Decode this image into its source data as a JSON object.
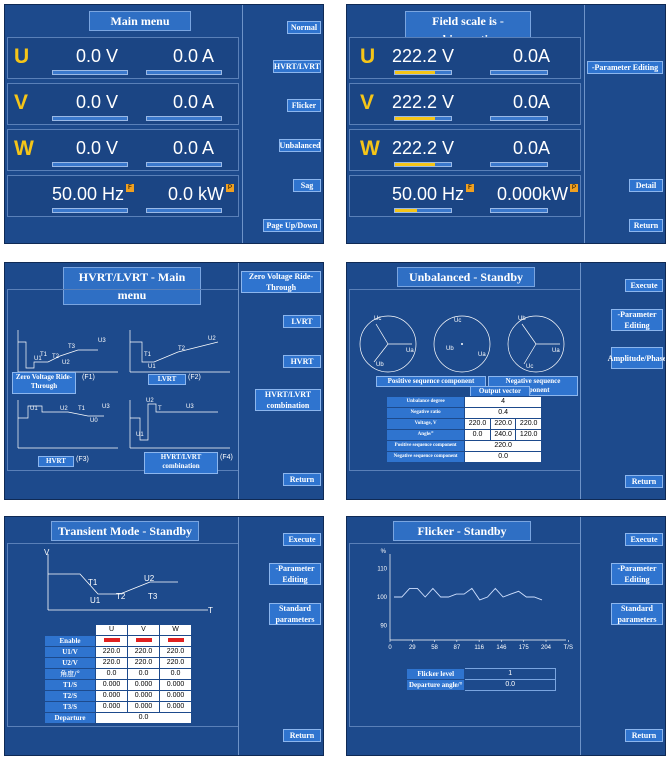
{
  "panel1": {
    "title": "Main menu",
    "rows": [
      {
        "phase": "U",
        "voltage": "0.0 V",
        "current": "0.0 A"
      },
      {
        "phase": "V",
        "voltage": "0.0 V",
        "current": "0.0 A"
      },
      {
        "phase": "W",
        "voltage": "0.0 V",
        "current": "0.0 A"
      }
    ],
    "frequency": "50.00 Hz",
    "power": "0.0 kW",
    "freq_tag": "F",
    "power_tag": "P",
    "buttons": [
      "Normal",
      "HVRT/LVRT",
      "Flicker",
      "Unbalanced",
      "Sag",
      "Page Up/Down"
    ]
  },
  "panel2": {
    "title": "Field scale is - kinematic",
    "rows": [
      {
        "phase": "U",
        "voltage": "222.2 V",
        "current": "0.0A",
        "level": 0.72
      },
      {
        "phase": "V",
        "voltage": "222.2 V",
        "current": "0.0A",
        "level": 0.72
      },
      {
        "phase": "W",
        "voltage": "222.2 V",
        "current": "0.0A",
        "level": 0.72
      }
    ],
    "frequency": "50.00 Hz",
    "power": "0.000kW",
    "freq_tag": "F",
    "power_tag": "P",
    "freq_level": 0.4,
    "buttons": [
      "-Parameter Editing",
      "Detail",
      "Return"
    ]
  },
  "panel3": {
    "title": "HVRT/LVRT - Main menu",
    "buttons": [
      "Zero Voltage Ride-Through",
      "LVRT",
      "HVRT",
      "HVRT/LVRT combination",
      "Return"
    ],
    "graph_labels": {
      "f1_u1": "U1",
      "f1_u2": "U2",
      "f1_t3": "T3",
      "f1_u3": "U3",
      "f1_t1": "T1",
      "f1_t2": "T2",
      "f2_t1": "T1",
      "f2_t2": "T2",
      "f2_u2": "U2",
      "f2_u1": "U1",
      "f3_u1": "U1",
      "f3_u2": "U2",
      "f3_u3": "U3",
      "f3_t1": "T1",
      "f3_u0": "U0",
      "f4_u2": "U2",
      "f4_u1": "U1",
      "f4_u3": "U3",
      "f4_t": "T"
    },
    "f1_caption": "(F1)",
    "f2_caption": "(F2)",
    "f3_caption": "(F3)",
    "f4_caption": "(F4)",
    "label_zvrt": "Zero Voltage Ride-Through",
    "label_lvrt": "LVRT",
    "label_hvrt": "HVRT",
    "label_combo": "HVRT/LVRT combination"
  },
  "panel4": {
    "title": "Unbalanced - Standby",
    "buttons": [
      "Execute",
      "-Parameter Editing",
      "Amplitude/Phase",
      "Return"
    ],
    "phasor_labels": [
      "Uc",
      "Ub",
      "Ua",
      "Uc",
      "Ub",
      "Ua",
      "Ub",
      "Uc",
      "Ua"
    ],
    "label_pos": "Positive sequence component",
    "label_neg": "Negative sequence component",
    "label_out": "Output vector",
    "table": [
      {
        "label": "Unbalance degree",
        "cells": [
          "4"
        ]
      },
      {
        "label": "Negative ratio",
        "cells": [
          "0.4"
        ]
      },
      {
        "label": "Voltage, V",
        "cells": [
          "220.0",
          "220.0",
          "220.0"
        ]
      },
      {
        "label": "Angle/°",
        "cells": [
          "0.0",
          "240.0",
          "120.0"
        ]
      },
      {
        "label": "Positive sequence component",
        "cells": [
          "220.0"
        ]
      },
      {
        "label": "Negative sequence component",
        "cells": [
          "0.0"
        ]
      }
    ]
  },
  "panel5": {
    "title": "Transient Mode - Standby",
    "buttons": [
      "Execute",
      "-Parameter Editing",
      "Standard parameters",
      "Return"
    ],
    "graph_labels": {
      "v": "V",
      "t": "T",
      "t1": "T1",
      "u1": "U1",
      "t2": "T2",
      "u2": "U2",
      "t3": "T3"
    },
    "columns": [
      "",
      "U",
      "V",
      "W"
    ],
    "rows": [
      {
        "label": "Enable",
        "cells": [
          "",
          "",
          ""
        ]
      },
      {
        "label": "U1/V",
        "cells": [
          "220.0",
          "220.0",
          "220.0"
        ]
      },
      {
        "label": "U2/V",
        "cells": [
          "220.0",
          "220.0",
          "220.0"
        ]
      },
      {
        "label": "角度/°",
        "cells": [
          "0.0",
          "0.0",
          "0.0"
        ]
      },
      {
        "label": "T1/S",
        "cells": [
          "0.000",
          "0.000",
          "0.000"
        ]
      },
      {
        "label": "T2/S",
        "cells": [
          "0.000",
          "0.000",
          "0.000"
        ]
      },
      {
        "label": "T3/S",
        "cells": [
          "0.000",
          "0.000",
          "0.000"
        ]
      }
    ],
    "departure_label": "Departure",
    "departure_value": "0.0"
  },
  "panel6": {
    "title": "Flicker - Standby",
    "buttons": [
      "Execute",
      "-Parameter Editing",
      "Standard parameters",
      "Return"
    ],
    "chart_data": {
      "type": "line",
      "title": "",
      "xlabel": "T/S",
      "ylabel": "%",
      "x_ticks": [
        "0",
        "29",
        "58",
        "87",
        "116",
        "146",
        "175",
        "204",
        "T/S"
      ],
      "y_ticks": [
        "110",
        "100",
        "90"
      ],
      "ylim": [
        85,
        115
      ],
      "values": [
        100,
        100,
        103,
        103,
        100,
        103,
        100,
        100,
        101,
        101,
        103,
        99,
        100,
        103,
        100,
        101,
        102,
        100,
        100,
        99
      ]
    },
    "flicker_label": "Flicker level",
    "flicker_value": "1",
    "departure_label": "Departure angle/°",
    "departure_value": "0.0"
  }
}
